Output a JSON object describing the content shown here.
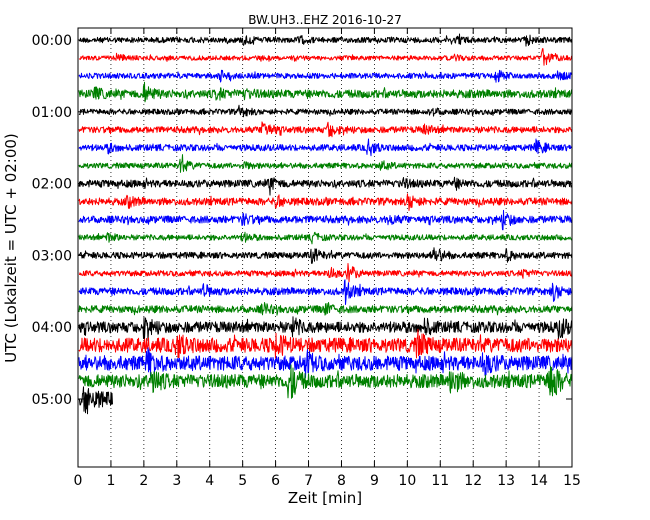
{
  "chart_data": {
    "type": "line",
    "title": "BW.UH3..EHZ 2016-10-27",
    "xlabel": "Zeit  [min]",
    "ylabel": "UTC (Lokalzeit = UTC + 02:00)",
    "xlim": [
      0,
      15
    ],
    "x_ticks": [
      "0",
      "1",
      "2",
      "3",
      "4",
      "5",
      "6",
      "7",
      "8",
      "9",
      "10",
      "11",
      "12",
      "13",
      "14",
      "15"
    ],
    "y_ticks": [
      {
        "label": "00:00",
        "hours": 0
      },
      {
        "label": "01:00",
        "hours": 1
      },
      {
        "label": "02:00",
        "hours": 2
      },
      {
        "label": "03:00",
        "hours": 3
      },
      {
        "label": "04:00",
        "hours": 4
      },
      {
        "label": "05:00",
        "hours": 5
      }
    ],
    "ylim_hours": [
      0,
      6
    ],
    "trace_interval_min": 15,
    "grid": {
      "vertical": true,
      "style": "dotted"
    },
    "colors": [
      "#000000",
      "#ff0000",
      "#0000ff",
      "#008000"
    ],
    "traces": [
      {
        "start": "00:00",
        "color": "#000000",
        "amplitude": 0.3,
        "end_min": 15,
        "events": [
          {
            "t": 5.0,
            "a": 0.45
          },
          {
            "t": 6.7,
            "a": 0.35
          },
          {
            "t": 11.5,
            "a": 0.35
          },
          {
            "t": 13.6,
            "a": 0.5
          }
        ]
      },
      {
        "start": "00:15",
        "color": "#ff0000",
        "amplitude": 0.25,
        "end_min": 15,
        "events": [
          {
            "t": 1.2,
            "a": 0.3
          },
          {
            "t": 11.4,
            "a": 0.3
          },
          {
            "t": 14.1,
            "a": 1.0
          }
        ]
      },
      {
        "start": "00:30",
        "color": "#0000ff",
        "amplitude": 0.3,
        "end_min": 15,
        "events": [
          {
            "t": 4.3,
            "a": 0.5
          },
          {
            "t": 12.7,
            "a": 0.6
          },
          {
            "t": 14.5,
            "a": 0.5
          }
        ]
      },
      {
        "start": "00:45",
        "color": "#008000",
        "amplitude": 0.45,
        "end_min": 15,
        "events": [
          {
            "t": 0.5,
            "a": 0.5
          },
          {
            "t": 2.0,
            "a": 1.0
          },
          {
            "t": 4.2,
            "a": 0.5
          },
          {
            "t": 5.0,
            "a": 0.45
          }
        ]
      },
      {
        "start": "01:00",
        "color": "#000000",
        "amplitude": 0.3,
        "end_min": 15,
        "events": [
          {
            "t": 4.9,
            "a": 0.6
          },
          {
            "t": 10.7,
            "a": 0.4
          }
        ]
      },
      {
        "start": "01:15",
        "color": "#ff0000",
        "amplitude": 0.35,
        "end_min": 15,
        "events": [
          {
            "t": 5.6,
            "a": 1.1
          },
          {
            "t": 7.6,
            "a": 0.8
          },
          {
            "t": 10.5,
            "a": 0.4
          }
        ]
      },
      {
        "start": "01:30",
        "color": "#0000ff",
        "amplitude": 0.35,
        "end_min": 15,
        "events": [
          {
            "t": 0.9,
            "a": 0.4
          },
          {
            "t": 8.8,
            "a": 0.9
          },
          {
            "t": 13.9,
            "a": 0.7
          }
        ]
      },
      {
        "start": "01:45",
        "color": "#008000",
        "amplitude": 0.3,
        "end_min": 15,
        "events": [
          {
            "t": 3.1,
            "a": 0.8
          },
          {
            "t": 5.0,
            "a": 0.35
          },
          {
            "t": 9.2,
            "a": 0.4
          }
        ]
      },
      {
        "start": "02:00",
        "color": "#000000",
        "amplitude": 0.4,
        "end_min": 15,
        "events": [
          {
            "t": 5.8,
            "a": 0.6
          },
          {
            "t": 9.8,
            "a": 0.45
          },
          {
            "t": 11.4,
            "a": 0.4
          }
        ]
      },
      {
        "start": "02:15",
        "color": "#ff0000",
        "amplitude": 0.4,
        "end_min": 15,
        "events": [
          {
            "t": 1.5,
            "a": 0.5
          },
          {
            "t": 6.0,
            "a": 0.5
          },
          {
            "t": 10.0,
            "a": 0.8
          }
        ]
      },
      {
        "start": "02:30",
        "color": "#0000ff",
        "amplitude": 0.4,
        "end_min": 15,
        "events": [
          {
            "t": 5.0,
            "a": 0.5
          },
          {
            "t": 9.4,
            "a": 0.45
          },
          {
            "t": 12.9,
            "a": 0.8
          }
        ]
      },
      {
        "start": "02:45",
        "color": "#008000",
        "amplitude": 0.3,
        "end_min": 15,
        "events": [
          {
            "t": 0.9,
            "a": 0.4
          },
          {
            "t": 5.0,
            "a": 0.45
          },
          {
            "t": 7.1,
            "a": 0.45
          }
        ]
      },
      {
        "start": "03:00",
        "color": "#000000",
        "amplitude": 0.35,
        "end_min": 15,
        "events": [
          {
            "t": 7.1,
            "a": 0.8
          },
          {
            "t": 10.8,
            "a": 1.0
          },
          {
            "t": 13.0,
            "a": 0.5
          }
        ]
      },
      {
        "start": "03:15",
        "color": "#ff0000",
        "amplitude": 0.3,
        "end_min": 15,
        "events": [
          {
            "t": 7.6,
            "a": 0.7
          },
          {
            "t": 8.2,
            "a": 0.9
          },
          {
            "t": 13.5,
            "a": 0.4
          }
        ]
      },
      {
        "start": "03:30",
        "color": "#0000ff",
        "amplitude": 0.4,
        "end_min": 15,
        "events": [
          {
            "t": 3.8,
            "a": 0.6
          },
          {
            "t": 8.1,
            "a": 1.2
          },
          {
            "t": 14.4,
            "a": 0.9
          }
        ]
      },
      {
        "start": "03:45",
        "color": "#008000",
        "amplitude": 0.4,
        "end_min": 15,
        "events": [
          {
            "t": 5.6,
            "a": 0.5
          },
          {
            "t": 7.5,
            "a": 0.6
          }
        ]
      },
      {
        "start": "04:00",
        "color": "#000000",
        "amplitude": 0.6,
        "end_min": 15,
        "events": [
          {
            "t": 2.0,
            "a": 0.9
          },
          {
            "t": 6.5,
            "a": 0.8
          },
          {
            "t": 10.5,
            "a": 0.7
          },
          {
            "t": 14.6,
            "a": 1.0
          }
        ]
      },
      {
        "start": "04:15",
        "color": "#ff0000",
        "amplitude": 0.8,
        "end_min": 15,
        "events": [
          {
            "t": 3.0,
            "a": 1.2
          },
          {
            "t": 6.0,
            "a": 1.0
          },
          {
            "t": 10.3,
            "a": 1.2
          }
        ]
      },
      {
        "start": "04:30",
        "color": "#0000ff",
        "amplitude": 0.8,
        "end_min": 15,
        "events": [
          {
            "t": 2.1,
            "a": 1.1
          },
          {
            "t": 6.9,
            "a": 1.0
          },
          {
            "t": 12.3,
            "a": 1.0
          }
        ]
      },
      {
        "start": "04:45",
        "color": "#008000",
        "amplitude": 0.75,
        "end_min": 15,
        "events": [
          {
            "t": 2.2,
            "a": 1.3
          },
          {
            "t": 6.4,
            "a": 2.2
          },
          {
            "t": 11.3,
            "a": 1.4
          },
          {
            "t": 14.3,
            "a": 2.6
          }
        ]
      },
      {
        "start": "05:00",
        "color": "#000000",
        "amplitude": 0.8,
        "end_min": 1.05,
        "events": [
          {
            "t": 0.2,
            "a": 1.4
          }
        ]
      }
    ]
  }
}
